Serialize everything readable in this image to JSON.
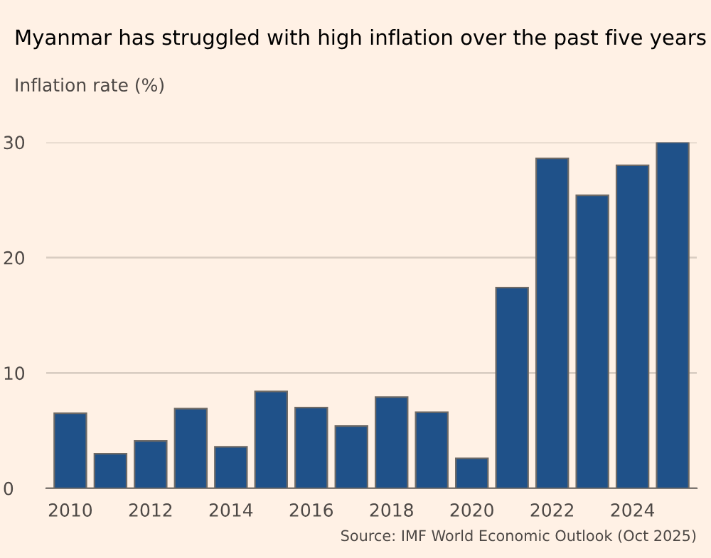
{
  "chart_data": {
    "type": "bar",
    "title": "Myanmar has struggled with high inflation over the past five years",
    "ylabel": "Inflation rate (%)",
    "categories": [
      "2010",
      null,
      "2012",
      null,
      "2014",
      null,
      "2016",
      null,
      "2018",
      null,
      "2020",
      null,
      "2022",
      null,
      "2024",
      null
    ],
    "values": [
      6.5,
      3.0,
      4.1,
      6.9,
      3.6,
      8.4,
      7.0,
      5.4,
      7.9,
      6.6,
      2.6,
      17.4,
      28.6,
      25.4,
      28.0,
      30.0
    ],
    "color": "#1f5189",
    "ylim": [
      0,
      30
    ],
    "yticks": [
      0,
      10,
      20,
      30
    ],
    "grid": "y",
    "annotations": [
      "Source: IMF World Economic Outlook (Oct 2025)"
    ]
  }
}
